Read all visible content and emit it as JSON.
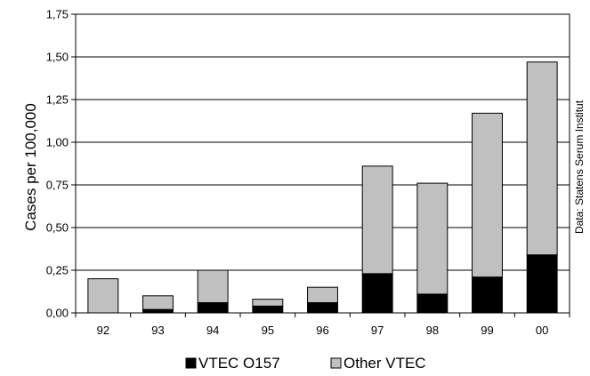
{
  "chart_data": {
    "type": "bar",
    "stacked": true,
    "categories": [
      "92",
      "93",
      "94",
      "95",
      "96",
      "97",
      "98",
      "99",
      "00"
    ],
    "series": [
      {
        "name": "VTEC O157",
        "values": [
          0.0,
          0.02,
          0.06,
          0.04,
          0.06,
          0.23,
          0.11,
          0.21,
          0.34
        ],
        "color": "#000000"
      },
      {
        "name": "Other VTEC",
        "values": [
          0.2,
          0.08,
          0.19,
          0.04,
          0.09,
          0.63,
          0.65,
          0.96,
          1.13
        ],
        "color": "#c0c0c0"
      }
    ],
    "ylim": [
      0,
      1.75
    ],
    "yticks": [
      "0,00",
      "0,25",
      "0,50",
      "0,75",
      "1,00",
      "1,25",
      "1,50",
      "1,75"
    ],
    "ylabel": "Cases per 100,000",
    "xlabel": "",
    "grid": true,
    "legend_position": "bottom",
    "source_note": "Data: Statens Serum Institut"
  }
}
